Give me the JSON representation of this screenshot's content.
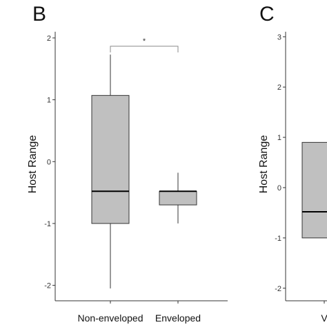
{
  "chart_data": [
    {
      "panel_label": "B",
      "type": "box",
      "title": "",
      "xlabel": "",
      "ylabel": "Host Range",
      "ylim": [
        -2.25,
        2.1
      ],
      "yticks": [
        2,
        1,
        0,
        -1,
        -2
      ],
      "ytick_labels": [
        "2",
        "1",
        "0",
        "-1",
        "-2"
      ],
      "categories": [
        "Non-enveloped",
        "Enveloped"
      ],
      "box_color": "#c0c0c0",
      "boxes": [
        {
          "category": "Non-enveloped",
          "whisker_low": -2.05,
          "q1": -1.0,
          "median": -0.48,
          "q3": 1.07,
          "whisker_high": 1.73
        },
        {
          "category": "Enveloped",
          "whisker_low": -1.0,
          "q1": -0.7,
          "median": -0.48,
          "q3": -0.48,
          "whisker_high": -0.18
        }
      ],
      "significance": {
        "from": "Non-enveloped",
        "to": "Enveloped",
        "label": "*"
      },
      "grid": false
    },
    {
      "panel_label": "C",
      "type": "box",
      "title": "",
      "xlabel": "",
      "ylabel": "Host Range",
      "ylim": [
        -2.25,
        3.1
      ],
      "yticks": [
        3,
        2,
        1,
        0,
        -1,
        -2
      ],
      "ytick_labels": [
        "3",
        "2",
        "1",
        "0",
        "-1",
        "-2"
      ],
      "categories": [
        "V"
      ],
      "box_color": "#c0c0c0",
      "boxes": [
        {
          "category": "V",
          "q1": -1.0,
          "median": -0.48,
          "q3": 0.9
        }
      ],
      "grid": false
    }
  ]
}
